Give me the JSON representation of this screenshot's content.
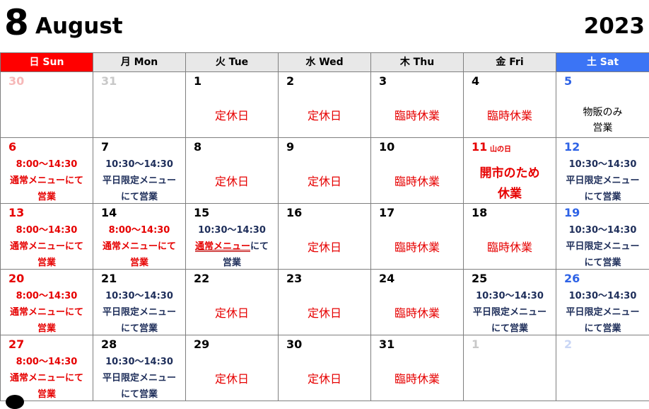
{
  "header": {
    "month_number": "8",
    "month_name": "August",
    "year": "2023"
  },
  "weekdays": [
    "日 Sun",
    "月 Mon",
    "火 Tue",
    "水 Wed",
    "木 Thu",
    "金 Fri",
    "土 Sat"
  ],
  "labels": {
    "closed": "定休日",
    "temp_closed": "臨時休業",
    "hours_weekend": "8:00〜14:30",
    "hours_weekday": "10:30〜14:30",
    "regular_menu": "通常メニューにて",
    "business": "営業",
    "weekday_menu": "平日限定メニュー",
    "weekday_business": "にて営業",
    "goods_only": "物販のみ",
    "mountain_day": "山の日",
    "market_line1": "開市のため",
    "market_line2": "休業",
    "regular_menu_part1": "通常メニュー",
    "regular_menu_part2": "にて"
  },
  "days": {
    "r1": [
      "30",
      "31",
      "1",
      "2",
      "3",
      "4",
      "5"
    ],
    "r2": [
      "6",
      "7",
      "8",
      "9",
      "10",
      "11",
      "12"
    ],
    "r3": [
      "13",
      "14",
      "15",
      "16",
      "17",
      "18",
      "19"
    ],
    "r4": [
      "20",
      "21",
      "22",
      "23",
      "24",
      "25",
      "26"
    ],
    "r5": [
      "27",
      "28",
      "29",
      "30",
      "31",
      "1",
      "2"
    ]
  },
  "colors": {
    "sun_header": "#ff0000",
    "sat_header": "#3b74f5",
    "red_text": "#e60000",
    "blue_text": "#2d62e6",
    "navy_text": "#1e2e5a"
  }
}
